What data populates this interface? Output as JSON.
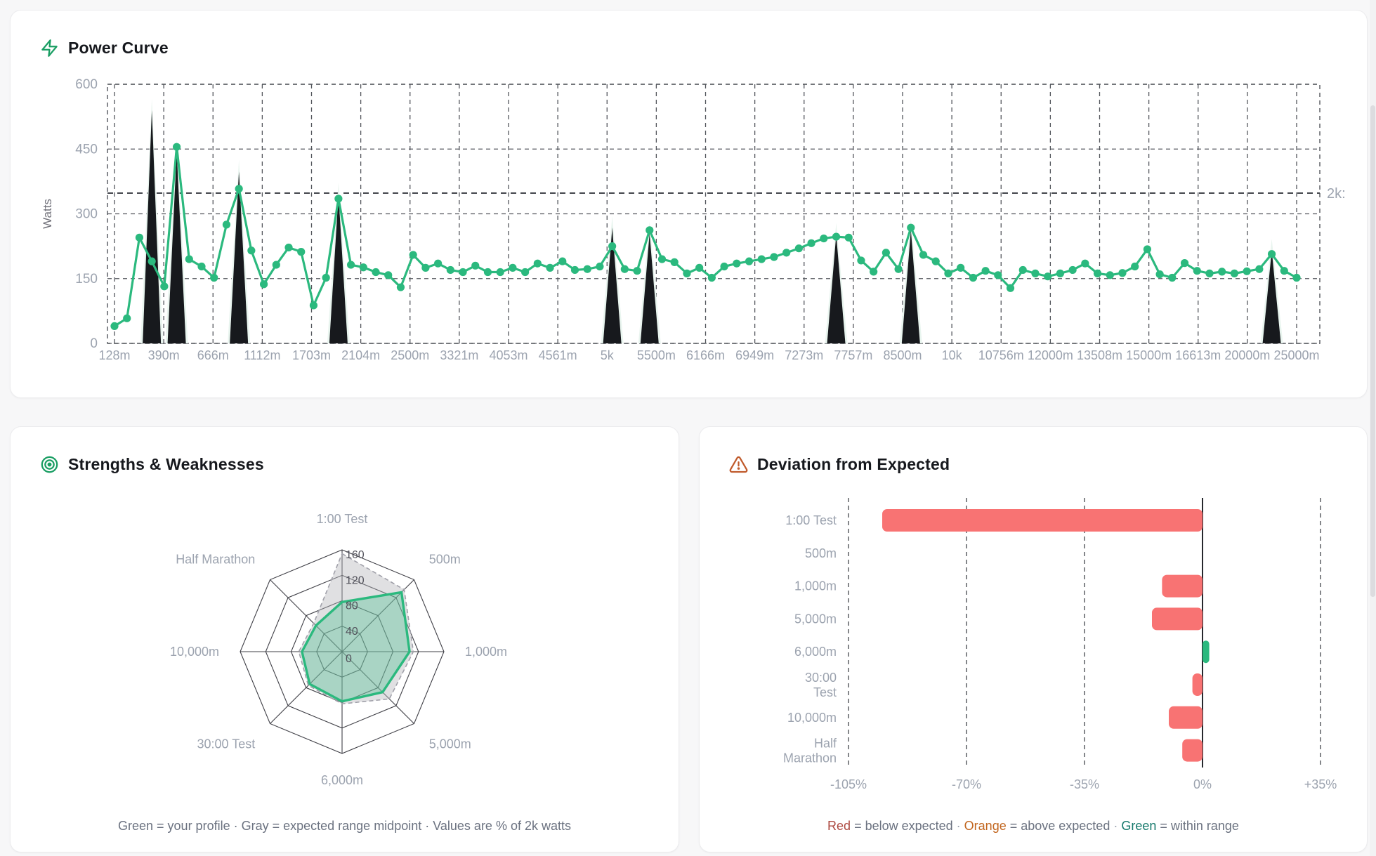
{
  "cards": {
    "power": {
      "title": "Power Curve"
    },
    "radar": {
      "title": "Strengths & Weaknesses",
      "caption": "Green = your profile · Gray = expected range midpoint · Values are % of 2k watts"
    },
    "deviation": {
      "title": "Deviation from Expected",
      "legend_parts": [
        {
          "text": "Red",
          "color": "#ae4a42"
        },
        {
          "text": " = below expected",
          "color": "#6b7280"
        },
        {
          "text": " · ",
          "color": "#9ca3af"
        },
        {
          "text": "Orange",
          "color": "#c2661f"
        },
        {
          "text": " = above expected",
          "color": "#6b7280"
        },
        {
          "text": " · ",
          "color": "#9ca3af"
        },
        {
          "text": "Green",
          "color": "#16796c"
        },
        {
          "text": " = within range",
          "color": "#6b7280"
        }
      ]
    }
  },
  "colors": {
    "accent_green": "#2bb97e",
    "bar_red": "#f87373",
    "spike_black": "#17191d",
    "spike_halo": "#e9f5ef",
    "grid_dark": "#53565c",
    "tick_text": "#9ca3af",
    "ring_text": "#52525b",
    "icon_green": "#1a9e63",
    "icon_rust": "#c05a2b"
  },
  "chart_data": [
    {
      "type": "line",
      "title": "Power Curve",
      "ylabel": "Watts",
      "ylim": [
        0,
        600
      ],
      "yticks": [
        0,
        150,
        300,
        450,
        600
      ],
      "grid": true,
      "x_tick_labels": [
        "128m",
        "390m",
        "666m",
        "1112m",
        "1703m",
        "2104m",
        "2500m",
        "3321m",
        "4053m",
        "4561m",
        "5k",
        "5500m",
        "6166m",
        "6949m",
        "7273m",
        "7757m",
        "8500m",
        "10k",
        "10756m",
        "12000m",
        "13508m",
        "15000m",
        "16613m",
        "20000m",
        "25000m"
      ],
      "series": [
        {
          "name": "watts",
          "color": "#2bb97e",
          "values": [
            40,
            58,
            245,
            190,
            132,
            455,
            195,
            178,
            152,
            275,
            358,
            215,
            137,
            182,
            222,
            212,
            88,
            152,
            335,
            182,
            176,
            165,
            158,
            130,
            205,
            175,
            185,
            170,
            165,
            180,
            165,
            165,
            175,
            165,
            185,
            175,
            190,
            170,
            172,
            178,
            225,
            172,
            168,
            262,
            195,
            188,
            162,
            175,
            152,
            178,
            185,
            190,
            195,
            200,
            210,
            220,
            232,
            243,
            247,
            245,
            192,
            166,
            210,
            172,
            268,
            205,
            190,
            162,
            175,
            152,
            168,
            158,
            128,
            170,
            162,
            155,
            162,
            170,
            185,
            162,
            158,
            163,
            178,
            218,
            160,
            152,
            186,
            168,
            162,
            166,
            162,
            167,
            172,
            207,
            168,
            152
          ]
        }
      ],
      "spikes": [
        {
          "index": 3,
          "peak": 540
        },
        {
          "index": 5,
          "peak": 445
        },
        {
          "index": 10,
          "peak": 398
        },
        {
          "index": 18,
          "peak": 345
        },
        {
          "index": 40,
          "peak": 268
        },
        {
          "index": 43,
          "peak": 255
        },
        {
          "index": 58,
          "peak": 252
        },
        {
          "index": 64,
          "peak": 262
        },
        {
          "index": 93,
          "peak": 215
        }
      ],
      "reference_line": {
        "value": 348,
        "label": "2k:"
      }
    },
    {
      "type": "radar",
      "axes": [
        "1:00 Test",
        "500m",
        "1,000m",
        "5,000m",
        "6,000m",
        "30:00 Test",
        "10,000m",
        "Half Marathon"
      ],
      "rings": [
        0,
        40,
        80,
        120,
        160
      ],
      "max": 160,
      "unit": "% of 2k watts",
      "series": [
        {
          "name": "expected range midpoint",
          "color": "#a1a1aa",
          "style": "dashed",
          "values": [
            154,
            138,
            112,
            105,
            82,
            75,
            68,
            63
          ]
        },
        {
          "name": "your profile",
          "color": "#2bb97e",
          "style": "solid",
          "values": [
            78,
            132,
            106,
            90,
            78,
            72,
            63,
            58
          ]
        }
      ]
    },
    {
      "type": "bar",
      "orientation": "horizontal",
      "unit": "%",
      "categories": [
        [
          "1:00 Test"
        ],
        [
          "500m"
        ],
        [
          "1,000m"
        ],
        [
          "5,000m"
        ],
        [
          "6,000m"
        ],
        [
          "30:00",
          "Test"
        ],
        [
          "10,000m"
        ],
        [
          "Half",
          "Marathon"
        ]
      ],
      "values": [
        -95,
        0,
        -12,
        -15,
        2,
        -3,
        -10,
        -6
      ],
      "bar_colors": [
        "#f87373",
        "#f87373",
        "#f87373",
        "#f87373",
        "#2bb97e",
        "#f87373",
        "#f87373",
        "#f87373"
      ],
      "xlim": [
        -105,
        35
      ],
      "xticks": [
        {
          "value": -105,
          "label": "-105%"
        },
        {
          "value": -70,
          "label": "-70%"
        },
        {
          "value": -35,
          "label": "-35%"
        },
        {
          "value": 0,
          "label": "0%"
        },
        {
          "value": 35,
          "label": "+35%"
        }
      ]
    }
  ]
}
